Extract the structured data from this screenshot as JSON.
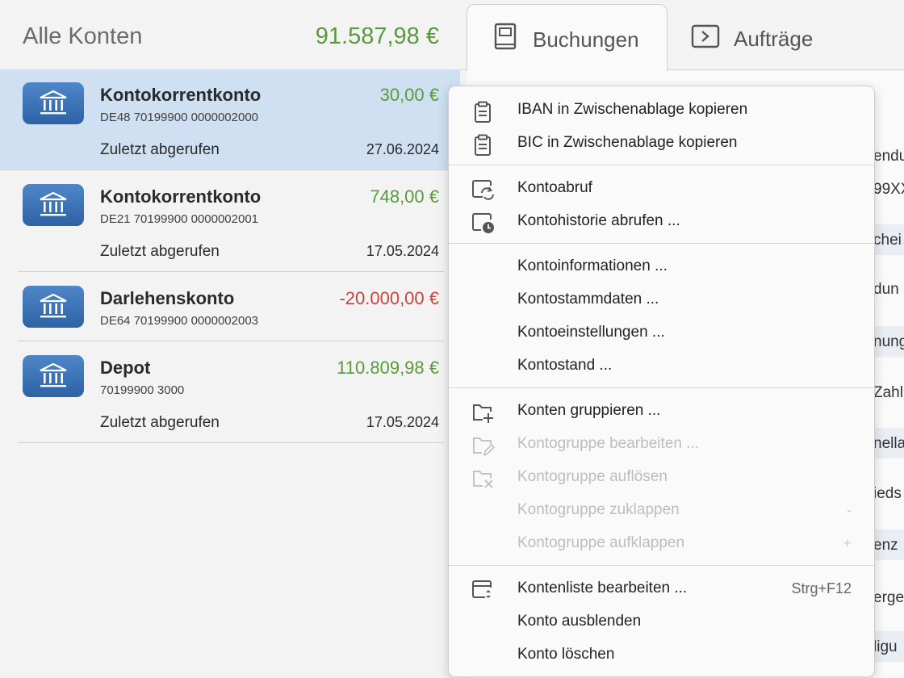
{
  "left": {
    "title": "Alle Konten",
    "total": "91.587,98 €",
    "accounts": [
      {
        "name": "Kontokorrentkonto",
        "iban": "DE48 70199900 0000002000",
        "amount": "30,00 €",
        "footer_label": "Zuletzt abgerufen",
        "footer_date": "27.06.2024"
      },
      {
        "name": "Kontokorrentkonto",
        "iban": "DE21 70199900 0000002001",
        "amount": "748,00 €",
        "footer_label": "Zuletzt abgerufen",
        "footer_date": "17.05.2024"
      },
      {
        "name": "Darlehenskonto",
        "iban": "DE64 70199900 0000002003",
        "amount": "-20.000,00 €"
      },
      {
        "name": "Depot",
        "iban": "70199900 3000",
        "amount": "110.809,98 €",
        "footer_label": "Zuletzt abgerufen",
        "footer_date": "17.05.2024"
      }
    ]
  },
  "tabs": [
    {
      "label": "Buchungen",
      "icon": "book-icon"
    },
    {
      "label": "Aufträge",
      "icon": "play-box-icon"
    }
  ],
  "peek": [
    "endu",
    "99XX",
    "chei",
    "dun",
    "nung",
    "Zahl",
    "nella",
    "ieds",
    "enz",
    "erge",
    "ligu"
  ],
  "menu": {
    "items": [
      {
        "label": "IBAN in Zwischenablage kopieren",
        "icon": "clipboard-icon"
      },
      {
        "label": "BIC in Zwischenablage kopieren",
        "icon": "clipboard-icon"
      },
      {
        "label": "Kontoabruf",
        "icon": "sync-window-icon"
      },
      {
        "label": "Kontohistorie abrufen ...",
        "icon": "history-window-icon"
      },
      {
        "label": "Kontoinformationen ..."
      },
      {
        "label": "Kontostammdaten ..."
      },
      {
        "label": "Kontoeinstellungen ..."
      },
      {
        "label": "Kontostand ..."
      },
      {
        "label": "Konten gruppieren ...",
        "icon": "folder-add-icon"
      },
      {
        "label": "Kontogruppe bearbeiten ...",
        "icon": "folder-edit-icon",
        "disabled": true
      },
      {
        "label": "Kontogruppe auflösen",
        "icon": "folder-remove-icon",
        "disabled": true
      },
      {
        "label": "Kontogruppe zuklappen",
        "shortcut": "-",
        "disabled": true
      },
      {
        "label": "Kontogruppe aufklappen",
        "shortcut": "+",
        "disabled": true
      },
      {
        "label": "Kontenliste bearbeiten ...",
        "icon": "list-edit-icon",
        "shortcut": "Strg+F12"
      },
      {
        "label": "Konto ausblenden"
      },
      {
        "label": "Konto löschen"
      }
    ]
  },
  "colors": {
    "positive": "#5a9a3a",
    "negative": "#c9433a",
    "selection": "#cfe0f2",
    "bank_icon": "#3a6fb0"
  }
}
